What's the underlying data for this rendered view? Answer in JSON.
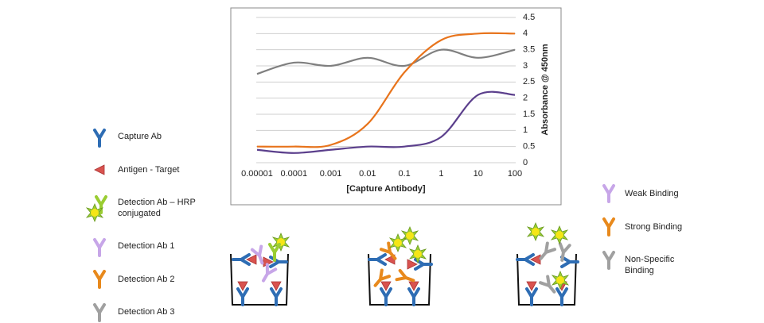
{
  "chart_data": {
    "type": "line",
    "x_label": "[Capture Antibody]",
    "y_label": "Absorbance @ 450nm",
    "categories": [
      "0.00001",
      "0.0001",
      "0.001",
      "0.01",
      "0.1",
      "1",
      "10",
      "100"
    ],
    "series": [
      {
        "color": "#7f7f7f",
        "values": [
          2.75,
          3.1,
          3.0,
          3.25,
          3.0,
          3.5,
          3.25,
          3.5
        ]
      },
      {
        "color": "#e8741c",
        "values": [
          0.5,
          0.5,
          0.55,
          1.2,
          2.8,
          3.8,
          4.0,
          4.0
        ]
      },
      {
        "color": "#5b3f8c",
        "values": [
          0.4,
          0.3,
          0.4,
          0.5,
          0.5,
          0.8,
          2.1,
          2.1
        ]
      }
    ],
    "ylim": [
      0,
      4.5
    ],
    "yticks": [
      0,
      0.5,
      1,
      1.5,
      2,
      2.5,
      3,
      3.5,
      4,
      4.5
    ],
    "grid": true
  },
  "component_key": [
    {
      "lines": [
        "Capture Ab"
      ]
    },
    {
      "lines": [
        "Antigen - Target"
      ]
    },
    {
      "lines": [
        "Detection Ab – HRP",
        "conjugated"
      ]
    },
    {
      "lines": [
        "Detection Ab 1"
      ]
    },
    {
      "lines": [
        "Detection Ab 2"
      ]
    },
    {
      "lines": [
        "Detection Ab 3"
      ]
    }
  ],
  "binding_key": [
    {
      "lines": [
        "Weak Binding"
      ]
    },
    {
      "lines": [
        "Strong Binding"
      ]
    },
    {
      "lines": [
        "Non-Specific",
        "Binding"
      ]
    }
  ]
}
